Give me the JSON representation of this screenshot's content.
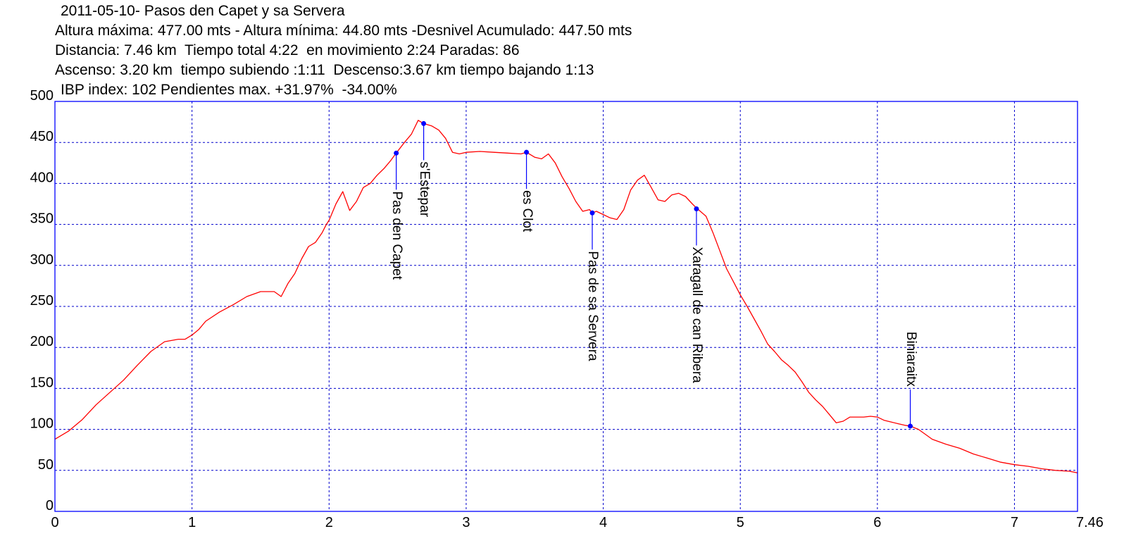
{
  "header": {
    "title": "2011-05-10- Pasos den Capet y sa Servera",
    "line_altitude": "Altura máxima: 477.00 mts - Altura mínima: 44.80 mts -Desnivel Acumulado: 447.50 mts",
    "line_distance": "Distancia: 7.46 km  Tiempo total 4:22  en movimiento 2:24 Paradas: 86",
    "line_ascent": "Ascenso: 3.20 km  tiempo subiendo :1:11  Descenso:3.67 km tiempo bajando 1:13",
    "line_ibp": "IBP index: 102 Pendientes max. +31.97%  -34.00%"
  },
  "chart_data": {
    "type": "line",
    "xlim": [
      0,
      7.46
    ],
    "ylim": [
      0,
      500
    ],
    "x_ticks": [
      "0",
      "1",
      "2",
      "3",
      "4",
      "5",
      "6",
      "7",
      "7.46"
    ],
    "x_tick_values": [
      0,
      1,
      2,
      3,
      4,
      5,
      6,
      7,
      7.46
    ],
    "y_ticks": [
      "0",
      "50",
      "100",
      "150",
      "200",
      "250",
      "300",
      "350",
      "400",
      "450",
      "500"
    ],
    "y_tick_values": [
      0,
      50,
      100,
      150,
      200,
      250,
      300,
      350,
      400,
      450,
      500
    ],
    "grid": true,
    "colors": {
      "line": "#ff0000",
      "frame": "#0000ff",
      "grid": "#0000cc",
      "waypoint": "#0000ff"
    },
    "series": [
      {
        "x": [
          0,
          0.1,
          0.2,
          0.3,
          0.4,
          0.5,
          0.6,
          0.7,
          0.8,
          0.9,
          0.95,
          1.0,
          1.05,
          1.1,
          1.2,
          1.3,
          1.4,
          1.5,
          1.6,
          1.65,
          1.7,
          1.75,
          1.8,
          1.85,
          1.9,
          1.95,
          1.98,
          2.0,
          2.05,
          2.1,
          2.15,
          2.2,
          2.25,
          2.3,
          2.35,
          2.4,
          2.45,
          2.49,
          2.55,
          2.6,
          2.65,
          2.69,
          2.75,
          2.8,
          2.85,
          2.9,
          2.95,
          3.0,
          3.1,
          3.2,
          3.3,
          3.4,
          3.44,
          3.5,
          3.55,
          3.6,
          3.65,
          3.7,
          3.75,
          3.8,
          3.85,
          3.9,
          3.92,
          3.95,
          4.0,
          4.05,
          4.1,
          4.15,
          4.2,
          4.25,
          4.3,
          4.35,
          4.4,
          4.45,
          4.5,
          4.55,
          4.6,
          4.65,
          4.68,
          4.75,
          4.8,
          4.85,
          4.9,
          4.95,
          5.0,
          5.05,
          5.1,
          5.15,
          5.2,
          5.25,
          5.3,
          5.35,
          5.4,
          5.45,
          5.5,
          5.55,
          5.6,
          5.65,
          5.7,
          5.75,
          5.8,
          5.85,
          5.9,
          5.95,
          6.0,
          6.05,
          6.1,
          6.15,
          6.2,
          6.24,
          6.3,
          6.35,
          6.4,
          6.5,
          6.6,
          6.7,
          6.8,
          6.9,
          7.0,
          7.1,
          7.2,
          7.3,
          7.4,
          7.46
        ],
        "y": [
          88,
          98,
          112,
          130,
          145,
          160,
          178,
          195,
          207,
          210,
          210,
          215,
          222,
          232,
          243,
          252,
          262,
          268,
          268,
          262,
          278,
          290,
          308,
          323,
          328,
          340,
          350,
          355,
          375,
          390,
          367,
          378,
          395,
          400,
          410,
          418,
          428,
          437,
          450,
          460,
          477,
          473,
          470,
          465,
          455,
          438,
          436,
          438,
          439,
          438,
          437,
          436,
          438,
          432,
          430,
          436,
          425,
          408,
          394,
          378,
          366,
          368,
          364,
          366,
          362,
          358,
          356,
          368,
          392,
          404,
          410,
          395,
          380,
          378,
          386,
          388,
          384,
          375,
          370,
          360,
          340,
          318,
          296,
          280,
          264,
          250,
          235,
          220,
          204,
          195,
          185,
          178,
          170,
          158,
          145,
          136,
          128,
          118,
          108,
          110,
          115,
          115,
          115,
          116,
          115,
          111,
          109,
          107,
          105,
          104,
          100,
          94,
          88,
          82,
          77,
          70,
          65,
          60,
          57,
          55,
          52,
          50,
          49,
          47
        ]
      }
    ],
    "waypoints": [
      {
        "name": "Pas den Capet",
        "x": 2.49,
        "y": 437
      },
      {
        "name": "s'Estepar",
        "x": 2.69,
        "y": 473
      },
      {
        "name": "es Clot",
        "x": 3.44,
        "y": 438
      },
      {
        "name": "Pas de sa Servera",
        "x": 3.92,
        "y": 364
      },
      {
        "name": "Xaragall de can Ribera",
        "x": 4.68,
        "y": 369
      },
      {
        "name": "Biniaraitx",
        "x": 6.24,
        "y": 104
      }
    ]
  }
}
